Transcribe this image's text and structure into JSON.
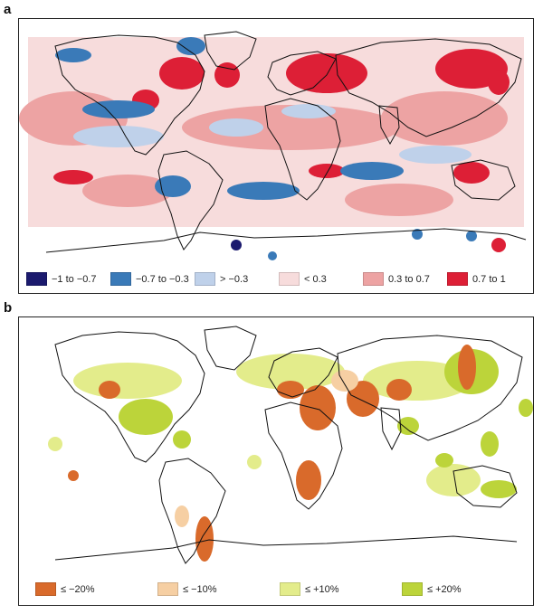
{
  "panels": [
    {
      "id": "a",
      "letter": "a",
      "legend": [
        {
          "label": "−1 to −0.7",
          "color": "#1b1a6e"
        },
        {
          "label": "−0.7 to −0.3",
          "color": "#3a7ab8"
        },
        {
          "label": "> −0.3",
          "color": "#bfd1ea"
        },
        {
          "label": "< 0.3",
          "color": "#f7dcdc"
        },
        {
          "label": "0.3 to 0.7",
          "color": "#eda3a3"
        },
        {
          "label": "0.7 to 1",
          "color": "#dd1f36"
        }
      ]
    },
    {
      "id": "b",
      "letter": "b",
      "legend": [
        {
          "label": "≤ −20%",
          "color": "#d96a2b"
        },
        {
          "label": "≤ −10%",
          "color": "#f6cfa3"
        },
        {
          "label": "≤ +10%",
          "color": "#e3ec8b"
        },
        {
          "label": "≤ +20%",
          "color": "#bcd43a"
        }
      ]
    }
  ]
}
